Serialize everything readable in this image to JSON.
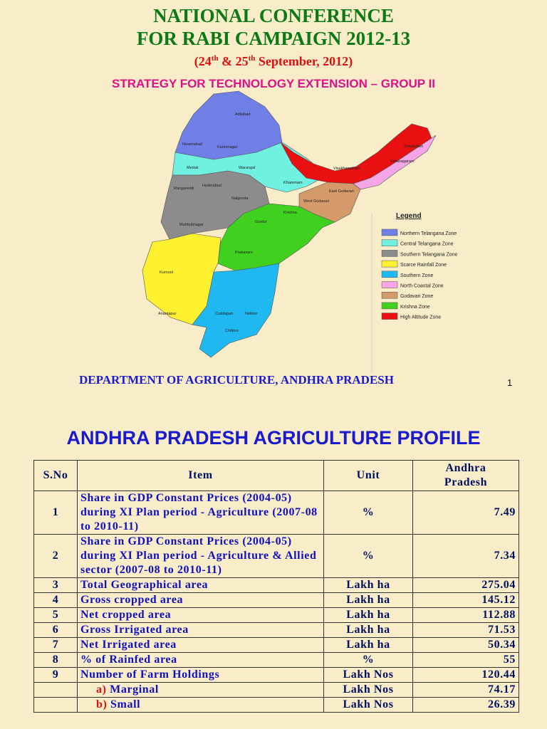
{
  "slide1": {
    "title_line1": "NATIONAL CONFERENCE",
    "title_line2": "FOR RABI CAMPAIGN 2012-13",
    "date_parts": [
      "(24",
      "th",
      " & 25",
      "th",
      " September,  2012)"
    ],
    "subtitle": "STRATEGY FOR TECHNOLOGY EXTENSION – GROUP II",
    "legend_title": "Legend",
    "legend": [
      {
        "label": "Northern Telangana Zone",
        "color": "#6f7fe6"
      },
      {
        "label": "Central Telangana Zone",
        "color": "#70f0e0"
      },
      {
        "label": "Southern Telangana Zone",
        "color": "#8c8c8c"
      },
      {
        "label": "Scarce Rainfall Zone",
        "color": "#fff030"
      },
      {
        "label": "Southern Zone",
        "color": "#20b8f0"
      },
      {
        "label": "North Coastal Zone",
        "color": "#f4a6e6"
      },
      {
        "label": "Godavari Zone",
        "color": "#d49a6a"
      },
      {
        "label": "Krishna Zone",
        "color": "#40d020"
      },
      {
        "label": "High Altitude Zone",
        "color": "#e81010"
      }
    ],
    "districts": [
      "Adilabad",
      "Nizamabad",
      "Karimnagar",
      "Medak",
      "Warangal",
      "Rangareddi",
      "Hyderabad",
      "Nalgonda",
      "Khammam",
      "Mahbubnagar",
      "Srikakulam",
      "Vizianagaram",
      "Visakhapatnam",
      "East Godavari",
      "West Godavari",
      "Krishna",
      "Guntur",
      "Prakasam",
      "Kurnool",
      "Anantapur",
      "Cuddapah",
      "Nellore",
      "Chittoor"
    ],
    "footer": "DEPARTMENT OF AGRICULTURE, ANDHRA PRADESH",
    "page_number": "1"
  },
  "slide2": {
    "title": "ANDHRA PRADESH AGRICULTURE PROFILE",
    "table": {
      "header": [
        "S.No",
        "Item",
        "Unit",
        "Andhra Pradesh"
      ],
      "rows": [
        {
          "sno": "1",
          "item": "Share in GDP Constant Prices (2004-05) during XI Plan period - Agriculture (2007-08 to 2010-11)",
          "unit": "%",
          "value": "7.49"
        },
        {
          "sno": "2",
          "item": "Share in GDP Constant Prices (2004-05) during XI Plan period - Agriculture & Allied sector (2007-08 to 2010-11)",
          "unit": "%",
          "value": "7.34"
        },
        {
          "sno": "3",
          "item": "Total Geographical area",
          "unit": "Lakh ha",
          "value": "275.04"
        },
        {
          "sno": "4",
          "item": "Gross cropped area",
          "unit": "Lakh ha",
          "value": "145.12"
        },
        {
          "sno": "5",
          "item": "Net cropped area",
          "unit": "Lakh ha",
          "value": "112.88"
        },
        {
          "sno": "6",
          "item": "Gross Irrigated area",
          "unit": "Lakh ha",
          "value": "71.53"
        },
        {
          "sno": "7",
          "item": "Net Irrigated area",
          "unit": "Lakh ha",
          "value": "50.34"
        },
        {
          "sno": "8",
          "item": "% of Rainfed area",
          "unit": "%",
          "value": "55"
        },
        {
          "sno": "9",
          "item": "Number of Farm Holdings",
          "unit": "Lakh Nos",
          "value": "120.44"
        },
        {
          "sno": "",
          "prefix": "a)",
          "item": "Marginal",
          "unit": "Lakh Nos",
          "value": "74.17"
        },
        {
          "sno": "",
          "prefix": "b)",
          "item": "Small",
          "unit": "Lakh Nos",
          "value": "26.39"
        }
      ]
    }
  }
}
